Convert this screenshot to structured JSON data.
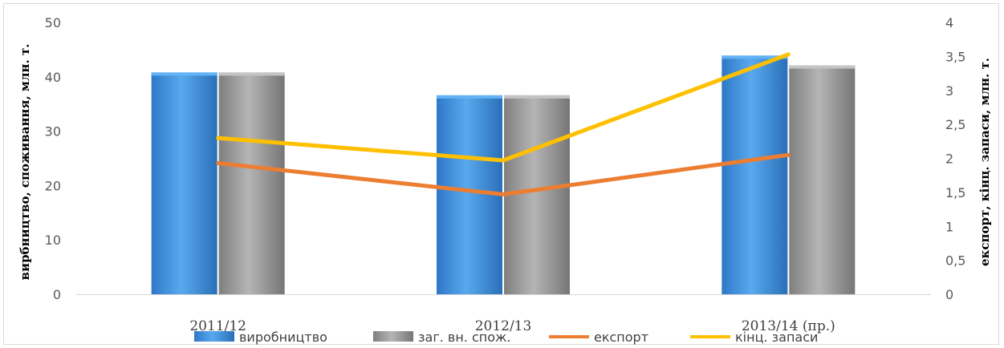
{
  "chart_data": {
    "type": "bar",
    "categories": [
      "2011/12",
      "2012/13",
      "2013/14 (пр.)"
    ],
    "ylabel_left": "вирбництво, споживання, млн. т.",
    "ylabel_right": "експорт, кінц. запаси, млн. т.",
    "ylim_left": [
      0,
      50
    ],
    "ylim_right": [
      0,
      4
    ],
    "yticks_left": [
      "0",
      "10",
      "20",
      "30",
      "40",
      "50"
    ],
    "yticks_right": [
      "0",
      "0,5",
      "1",
      "1,5",
      "2",
      "2,5",
      "3",
      "3,5",
      "4"
    ],
    "bar_series": [
      {
        "name": "виробництво",
        "color": "#3a8fdb",
        "values": [
          40.8,
          36.6,
          43.9
        ]
      },
      {
        "name": "заг. вн. спож.",
        "color": "#9a9a9a",
        "values": [
          40.8,
          36.6,
          42.1
        ]
      }
    ],
    "line_series": [
      {
        "name": "експорт",
        "color": "#ed7d31",
        "axis": "right",
        "values": [
          1.93,
          1.47,
          2.05
        ]
      },
      {
        "name": "кінц. запаси",
        "color": "#ffc000",
        "axis": "right",
        "values": [
          2.3,
          1.97,
          3.53
        ]
      }
    ],
    "grid": false,
    "legend_position": "bottom"
  }
}
